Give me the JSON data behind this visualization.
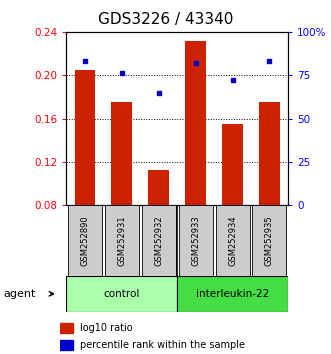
{
  "title": "GDS3226 / 43340",
  "samples": [
    "GSM252890",
    "GSM252931",
    "GSM252932",
    "GSM252933",
    "GSM252934",
    "GSM252935"
  ],
  "log10_ratio": [
    0.205,
    0.175,
    0.113,
    0.232,
    0.155,
    0.175
  ],
  "percentile_rank": [
    83,
    76,
    65,
    82,
    72,
    83
  ],
  "ylim_left": [
    0.08,
    0.24
  ],
  "ylim_right": [
    0,
    100
  ],
  "yticks_left": [
    0.08,
    0.12,
    0.16,
    0.2,
    0.24
  ],
  "ytick_labels_left": [
    "0.08",
    "0.12",
    "0.16",
    "0.20",
    "0.24"
  ],
  "yticks_right": [
    0,
    25,
    50,
    75,
    100
  ],
  "ytick_labels_right": [
    "0",
    "25",
    "50",
    "75",
    "100%"
  ],
  "bar_color": "#cc2200",
  "dot_color": "#0000cc",
  "bar_width": 0.55,
  "group_control_color": "#aaffaa",
  "group_il22_color": "#44dd44",
  "groups": [
    {
      "label": "control",
      "indices": [
        0,
        1,
        2
      ]
    },
    {
      "label": "interleukin-22",
      "indices": [
        3,
        4,
        5
      ]
    }
  ],
  "agent_label": "agent",
  "legend_items": [
    {
      "color": "#cc2200",
      "label": "log10 ratio"
    },
    {
      "color": "#0000cc",
      "label": "percentile rank within the sample"
    }
  ],
  "title_fontsize": 11,
  "tick_fontsize": 7.5,
  "sample_fontsize": 6,
  "group_fontsize": 7.5,
  "legend_fontsize": 7,
  "agent_fontsize": 8
}
